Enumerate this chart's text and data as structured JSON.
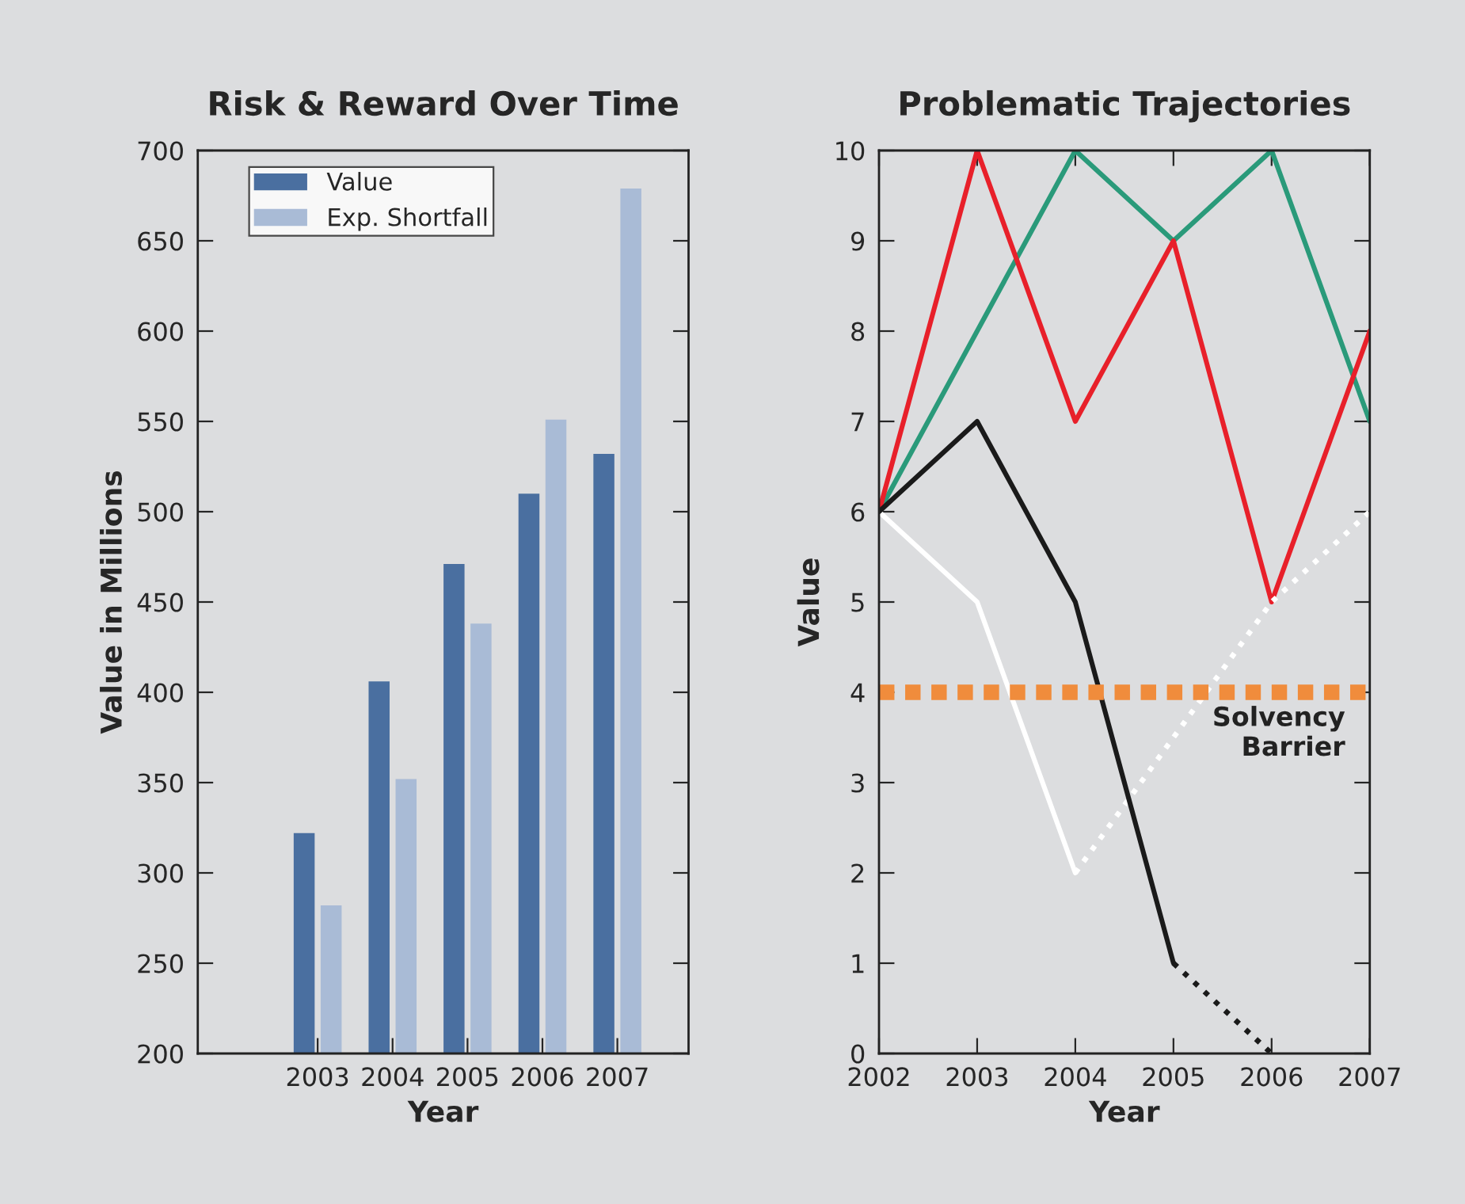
{
  "chart_data": [
    {
      "type": "bar",
      "title": "Risk & Reward Over Time",
      "xlabel": "Year",
      "ylabel": "Value in Millions",
      "categories": [
        "2003",
        "2004",
        "2005",
        "2006",
        "2007"
      ],
      "series": [
        {
          "name": "Value",
          "color": "#4a6fa0",
          "values": [
            322,
            406,
            471,
            510,
            532
          ]
        },
        {
          "name": "Exp. Shortfall",
          "color": "#a9bbd6",
          "values": [
            282,
            352,
            438,
            551,
            679
          ]
        }
      ],
      "ylim": [
        200,
        700
      ],
      "yticks": [
        200,
        250,
        300,
        350,
        400,
        450,
        500,
        550,
        600,
        650,
        700
      ],
      "grid": false,
      "legend": "top left"
    },
    {
      "type": "line",
      "title": "Problematic Trajectories",
      "xlabel": "Year",
      "ylabel": "Value",
      "series": [
        {
          "color": "#2a9a7a",
          "x": [
            2002,
            2003,
            2004,
            2005,
            2006,
            2007
          ],
          "values": [
            6,
            8,
            10,
            9,
            10,
            7
          ],
          "line_style": "solid"
        },
        {
          "color": "#e8202a",
          "x": [
            2002,
            2003,
            2004,
            2005,
            2006,
            2007
          ],
          "values": [
            6,
            10,
            7,
            9,
            5,
            8
          ],
          "line_style": "solid"
        },
        {
          "color": "#ffffff",
          "x": [
            2002,
            2003,
            2004
          ],
          "values": [
            6,
            5,
            2
          ],
          "line_style": "solid"
        },
        {
          "color": "#ffffff",
          "x": [
            2004,
            2006,
            2007
          ],
          "values": [
            2,
            5,
            6
          ],
          "line_style": "dotted"
        },
        {
          "color": "#1a1a1a",
          "x": [
            2002,
            2003,
            2004,
            2005
          ],
          "values": [
            6,
            7,
            5,
            1
          ],
          "line_style": "solid"
        },
        {
          "color": "#1a1a1a",
          "x": [
            2005,
            2006
          ],
          "values": [
            1,
            0
          ],
          "line_style": "dotted"
        }
      ],
      "xlim": [
        2002,
        2007
      ],
      "xticks": [
        2002,
        2003,
        2004,
        2005,
        2006,
        2007
      ],
      "ylim": [
        0,
        10
      ],
      "yticks": [
        0,
        1,
        2,
        3,
        4,
        5,
        6,
        7,
        8,
        9,
        10
      ],
      "grid": false,
      "legend": false,
      "ref_lines": [
        {
          "axis": "y",
          "value": 4,
          "label": "Solvency\nBarrier",
          "color": "#f08c3c",
          "line_style": "dotted"
        }
      ]
    }
  ]
}
